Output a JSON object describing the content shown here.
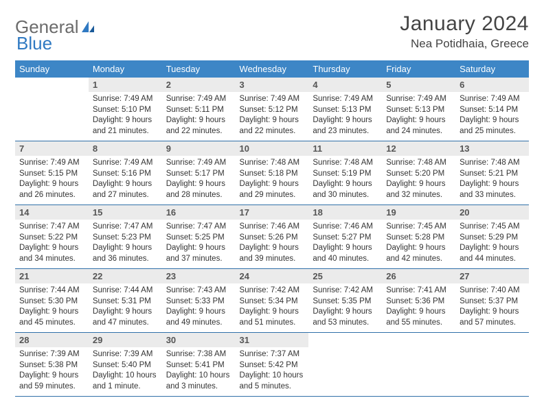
{
  "brand": {
    "part1": "General",
    "part2": "Blue"
  },
  "title": "January 2024",
  "location": "Nea Potidhaia, Greece",
  "colors": {
    "header_bg": "#3d86c6",
    "header_text": "#ffffff",
    "daynum_bg": "#ebebeb",
    "row_divider": "#2f6fa8",
    "logo_gray": "#6b6b6b",
    "logo_blue": "#2f79c2"
  },
  "weekdays": [
    "Sunday",
    "Monday",
    "Tuesday",
    "Wednesday",
    "Thursday",
    "Friday",
    "Saturday"
  ],
  "weeks": [
    [
      null,
      {
        "n": "1",
        "sr": "Sunrise: 7:49 AM",
        "ss": "Sunset: 5:10 PM",
        "dl": "Daylight: 9 hours and 21 minutes."
      },
      {
        "n": "2",
        "sr": "Sunrise: 7:49 AM",
        "ss": "Sunset: 5:11 PM",
        "dl": "Daylight: 9 hours and 22 minutes."
      },
      {
        "n": "3",
        "sr": "Sunrise: 7:49 AM",
        "ss": "Sunset: 5:12 PM",
        "dl": "Daylight: 9 hours and 22 minutes."
      },
      {
        "n": "4",
        "sr": "Sunrise: 7:49 AM",
        "ss": "Sunset: 5:13 PM",
        "dl": "Daylight: 9 hours and 23 minutes."
      },
      {
        "n": "5",
        "sr": "Sunrise: 7:49 AM",
        "ss": "Sunset: 5:13 PM",
        "dl": "Daylight: 9 hours and 24 minutes."
      },
      {
        "n": "6",
        "sr": "Sunrise: 7:49 AM",
        "ss": "Sunset: 5:14 PM",
        "dl": "Daylight: 9 hours and 25 minutes."
      }
    ],
    [
      {
        "n": "7",
        "sr": "Sunrise: 7:49 AM",
        "ss": "Sunset: 5:15 PM",
        "dl": "Daylight: 9 hours and 26 minutes."
      },
      {
        "n": "8",
        "sr": "Sunrise: 7:49 AM",
        "ss": "Sunset: 5:16 PM",
        "dl": "Daylight: 9 hours and 27 minutes."
      },
      {
        "n": "9",
        "sr": "Sunrise: 7:49 AM",
        "ss": "Sunset: 5:17 PM",
        "dl": "Daylight: 9 hours and 28 minutes."
      },
      {
        "n": "10",
        "sr": "Sunrise: 7:48 AM",
        "ss": "Sunset: 5:18 PM",
        "dl": "Daylight: 9 hours and 29 minutes."
      },
      {
        "n": "11",
        "sr": "Sunrise: 7:48 AM",
        "ss": "Sunset: 5:19 PM",
        "dl": "Daylight: 9 hours and 30 minutes."
      },
      {
        "n": "12",
        "sr": "Sunrise: 7:48 AM",
        "ss": "Sunset: 5:20 PM",
        "dl": "Daylight: 9 hours and 32 minutes."
      },
      {
        "n": "13",
        "sr": "Sunrise: 7:48 AM",
        "ss": "Sunset: 5:21 PM",
        "dl": "Daylight: 9 hours and 33 minutes."
      }
    ],
    [
      {
        "n": "14",
        "sr": "Sunrise: 7:47 AM",
        "ss": "Sunset: 5:22 PM",
        "dl": "Daylight: 9 hours and 34 minutes."
      },
      {
        "n": "15",
        "sr": "Sunrise: 7:47 AM",
        "ss": "Sunset: 5:23 PM",
        "dl": "Daylight: 9 hours and 36 minutes."
      },
      {
        "n": "16",
        "sr": "Sunrise: 7:47 AM",
        "ss": "Sunset: 5:25 PM",
        "dl": "Daylight: 9 hours and 37 minutes."
      },
      {
        "n": "17",
        "sr": "Sunrise: 7:46 AM",
        "ss": "Sunset: 5:26 PM",
        "dl": "Daylight: 9 hours and 39 minutes."
      },
      {
        "n": "18",
        "sr": "Sunrise: 7:46 AM",
        "ss": "Sunset: 5:27 PM",
        "dl": "Daylight: 9 hours and 40 minutes."
      },
      {
        "n": "19",
        "sr": "Sunrise: 7:45 AM",
        "ss": "Sunset: 5:28 PM",
        "dl": "Daylight: 9 hours and 42 minutes."
      },
      {
        "n": "20",
        "sr": "Sunrise: 7:45 AM",
        "ss": "Sunset: 5:29 PM",
        "dl": "Daylight: 9 hours and 44 minutes."
      }
    ],
    [
      {
        "n": "21",
        "sr": "Sunrise: 7:44 AM",
        "ss": "Sunset: 5:30 PM",
        "dl": "Daylight: 9 hours and 45 minutes."
      },
      {
        "n": "22",
        "sr": "Sunrise: 7:44 AM",
        "ss": "Sunset: 5:31 PM",
        "dl": "Daylight: 9 hours and 47 minutes."
      },
      {
        "n": "23",
        "sr": "Sunrise: 7:43 AM",
        "ss": "Sunset: 5:33 PM",
        "dl": "Daylight: 9 hours and 49 minutes."
      },
      {
        "n": "24",
        "sr": "Sunrise: 7:42 AM",
        "ss": "Sunset: 5:34 PM",
        "dl": "Daylight: 9 hours and 51 minutes."
      },
      {
        "n": "25",
        "sr": "Sunrise: 7:42 AM",
        "ss": "Sunset: 5:35 PM",
        "dl": "Daylight: 9 hours and 53 minutes."
      },
      {
        "n": "26",
        "sr": "Sunrise: 7:41 AM",
        "ss": "Sunset: 5:36 PM",
        "dl": "Daylight: 9 hours and 55 minutes."
      },
      {
        "n": "27",
        "sr": "Sunrise: 7:40 AM",
        "ss": "Sunset: 5:37 PM",
        "dl": "Daylight: 9 hours and 57 minutes."
      }
    ],
    [
      {
        "n": "28",
        "sr": "Sunrise: 7:39 AM",
        "ss": "Sunset: 5:38 PM",
        "dl": "Daylight: 9 hours and 59 minutes."
      },
      {
        "n": "29",
        "sr": "Sunrise: 7:39 AM",
        "ss": "Sunset: 5:40 PM",
        "dl": "Daylight: 10 hours and 1 minute."
      },
      {
        "n": "30",
        "sr": "Sunrise: 7:38 AM",
        "ss": "Sunset: 5:41 PM",
        "dl": "Daylight: 10 hours and 3 minutes."
      },
      {
        "n": "31",
        "sr": "Sunrise: 7:37 AM",
        "ss": "Sunset: 5:42 PM",
        "dl": "Daylight: 10 hours and 5 minutes."
      },
      null,
      null,
      null
    ]
  ]
}
